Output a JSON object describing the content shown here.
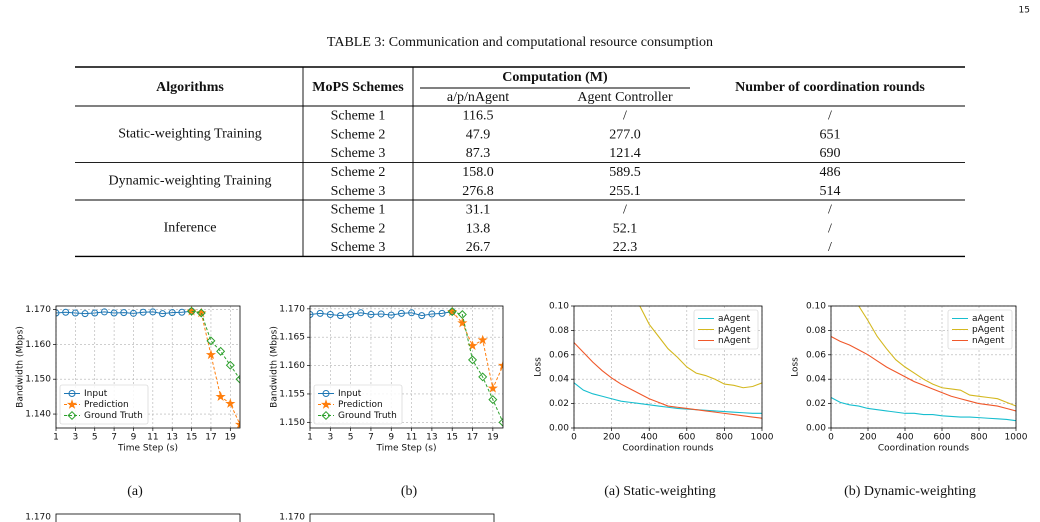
{
  "page_number": "15",
  "table": {
    "caption": "TABLE 3: Communication and computational resource consumption",
    "headers": {
      "algorithms": "Algorithms",
      "schemes": "MoPS Schemes",
      "computation": "Computation (M)",
      "agent": "a/p/nAgent",
      "controller": "Agent Controller",
      "rounds": "Number of coordination rounds"
    },
    "groups": [
      {
        "name": "Static-weighting Training",
        "rows": [
          [
            "Scheme 1",
            "116.5",
            "/",
            "/"
          ],
          [
            "Scheme 2",
            "47.9",
            "277.0",
            "651"
          ],
          [
            "Scheme 3",
            "87.3",
            "121.4",
            "690"
          ]
        ]
      },
      {
        "name": "Dynamic-weighting Training",
        "rows": [
          [
            "Scheme 2",
            "158.0",
            "589.5",
            "486"
          ],
          [
            "Scheme 3",
            "276.8",
            "255.1",
            "514"
          ]
        ]
      },
      {
        "name": "Inference",
        "rows": [
          [
            "Scheme 1",
            "31.1",
            "/",
            "/"
          ],
          [
            "Scheme 2",
            "13.8",
            "52.1",
            "/"
          ],
          [
            "Scheme 3",
            "26.7",
            "22.3",
            "/"
          ]
        ]
      }
    ]
  },
  "figures": [
    {
      "type": "line",
      "caption": "(a)",
      "xlabel": "Time Step (s)",
      "ylabel": "Bandwidth (Mbps)",
      "legend": "lower left",
      "grid": true,
      "x": [
        1,
        2,
        3,
        4,
        5,
        6,
        7,
        8,
        9,
        10,
        11,
        12,
        13,
        14,
        15,
        16,
        17,
        18,
        19,
        20
      ],
      "xlim": [
        1,
        20
      ],
      "xticks": [
        1,
        3,
        5,
        7,
        9,
        11,
        13,
        15,
        17,
        19
      ],
      "ylim": [
        1.136,
        1.171
      ],
      "yticks": [
        {
          "value": 1.14,
          "label": "1.140"
        },
        {
          "value": 1.15,
          "label": "1.150"
        },
        {
          "value": 1.16,
          "label": "1.160"
        },
        {
          "value": 1.17,
          "label": "1.170"
        }
      ],
      "series": [
        {
          "name": "Input",
          "color": "#1f77b4",
          "marker": "circle",
          "values": [
            1.169,
            1.1692,
            1.169,
            1.1688,
            1.169,
            1.1693,
            1.169,
            1.1691,
            1.1689,
            1.1692,
            1.1693,
            1.1688,
            1.1691,
            1.1692,
            1.1695,
            null,
            null,
            null,
            null,
            null
          ]
        },
        {
          "name": "Prediction",
          "color": "#ff7f0e",
          "marker": "star",
          "values": [
            null,
            null,
            null,
            null,
            null,
            null,
            null,
            null,
            null,
            null,
            null,
            null,
            null,
            null,
            1.1695,
            1.169,
            1.157,
            1.145,
            1.143,
            1.137
          ]
        },
        {
          "name": "Ground Truth",
          "color": "#2ca02c",
          "marker": "diamond",
          "values": [
            null,
            null,
            null,
            null,
            null,
            null,
            null,
            null,
            null,
            null,
            null,
            null,
            null,
            null,
            1.1695,
            1.169,
            1.161,
            1.158,
            1.154,
            1.15
          ]
        }
      ]
    },
    {
      "type": "line",
      "caption": "(b)",
      "xlabel": "Time Step (s)",
      "ylabel": "Bandwidth (Mbps)",
      "legend": "lower left",
      "grid": true,
      "x": [
        1,
        2,
        3,
        4,
        5,
        6,
        7,
        8,
        9,
        10,
        11,
        12,
        13,
        14,
        15,
        16,
        17,
        18,
        19,
        20
      ],
      "xlim": [
        1,
        20
      ],
      "xticks": [
        1,
        3,
        5,
        7,
        9,
        11,
        13,
        15,
        17,
        19
      ],
      "ylim": [
        1.149,
        1.1705
      ],
      "yticks": [
        {
          "value": 1.15,
          "label": "1.150"
        },
        1.155,
        {
          "value": 1.16,
          "label": "1.160"
        },
        1.165,
        {
          "value": 1.17,
          "label": "1.170"
        }
      ],
      "series": [
        {
          "name": "Input",
          "color": "#1f77b4",
          "marker": "circle",
          "values": [
            1.169,
            1.1692,
            1.169,
            1.1688,
            1.169,
            1.1693,
            1.169,
            1.1691,
            1.1689,
            1.1692,
            1.1693,
            1.1688,
            1.1691,
            1.1692,
            1.1695,
            null,
            null,
            null,
            null,
            null
          ]
        },
        {
          "name": "Prediction",
          "color": "#ff7f0e",
          "marker": "star",
          "values": [
            null,
            null,
            null,
            null,
            null,
            null,
            null,
            null,
            null,
            null,
            null,
            null,
            null,
            null,
            1.1695,
            1.1675,
            1.1635,
            1.1645,
            1.156,
            1.16
          ]
        },
        {
          "name": "Ground Truth",
          "color": "#2ca02c",
          "marker": "diamond",
          "values": [
            null,
            null,
            null,
            null,
            null,
            null,
            null,
            null,
            null,
            null,
            null,
            null,
            null,
            null,
            1.1695,
            1.169,
            1.161,
            1.158,
            1.154,
            1.15
          ]
        }
      ]
    },
    {
      "type": "line",
      "caption": "(a) Static-weighting",
      "xlabel": "Coordination rounds",
      "ylabel": "Loss",
      "legend": "upper right",
      "grid": true,
      "x": [
        0,
        50,
        100,
        150,
        200,
        250,
        300,
        350,
        400,
        450,
        500,
        550,
        600,
        650,
        700,
        750,
        800,
        850,
        900,
        950,
        1000
      ],
      "xlim": [
        0,
        1000
      ],
      "xticks": [
        0,
        200,
        400,
        600,
        800,
        1000
      ],
      "ylim": [
        0,
        0.1
      ],
      "yticks": [
        {
          "value": 0,
          "label": "0.00"
        },
        0.02,
        0.04,
        0.06,
        0.08,
        {
          "value": 0.1,
          "label": "0.10"
        }
      ],
      "series": [
        {
          "name": "aAgent",
          "color": "#17becf",
          "values": [
            0.037,
            0.031,
            0.028,
            0.026,
            0.024,
            0.022,
            0.021,
            0.02,
            0.019,
            0.018,
            0.017,
            0.016,
            0.0155,
            0.015,
            0.0145,
            0.014,
            0.0135,
            0.013,
            0.0125,
            0.012,
            0.012
          ]
        },
        {
          "name": "pAgent",
          "color": "#d4b820",
          "values": [
            null,
            null,
            null,
            null,
            null,
            null,
            null,
            0.1,
            0.085,
            0.075,
            0.065,
            0.058,
            0.05,
            0.045,
            0.043,
            0.04,
            0.036,
            0.035,
            0.033,
            0.034,
            0.037
          ]
        },
        {
          "name": "nAgent",
          "color": "#f0582a",
          "values": [
            0.07,
            0.062,
            0.054,
            0.047,
            0.041,
            0.036,
            0.032,
            0.028,
            0.024,
            0.021,
            0.018,
            0.017,
            0.016,
            0.015,
            0.014,
            0.013,
            0.012,
            0.011,
            0.01,
            0.009,
            0.008
          ]
        }
      ]
    },
    {
      "type": "line",
      "caption": "(b) Dynamic-weighting",
      "xlabel": "Coordination rounds",
      "ylabel": "Loss",
      "legend": "upper right",
      "grid": true,
      "x": [
        0,
        50,
        100,
        150,
        200,
        250,
        300,
        350,
        400,
        450,
        500,
        550,
        600,
        650,
        700,
        750,
        800,
        850,
        900,
        950,
        1000
      ],
      "xlim": [
        0,
        1000
      ],
      "xticks": [
        0,
        200,
        400,
        600,
        800,
        1000
      ],
      "ylim": [
        0,
        0.1
      ],
      "yticks": [
        {
          "value": 0,
          "label": "0.00"
        },
        0.02,
        0.04,
        0.06,
        0.08,
        {
          "value": 0.1,
          "label": "0.10"
        }
      ],
      "series": [
        {
          "name": "aAgent",
          "color": "#17becf",
          "values": [
            0.025,
            0.021,
            0.019,
            0.018,
            0.016,
            0.015,
            0.014,
            0.013,
            0.012,
            0.012,
            0.011,
            0.011,
            0.01,
            0.0095,
            0.009,
            0.009,
            0.0085,
            0.008,
            0.0075,
            0.007,
            0.006
          ]
        },
        {
          "name": "pAgent",
          "color": "#d4b820",
          "values": [
            null,
            null,
            null,
            0.1,
            0.088,
            0.075,
            0.065,
            0.056,
            0.05,
            0.045,
            0.04,
            0.036,
            0.033,
            0.032,
            0.031,
            0.027,
            0.026,
            0.025,
            0.024,
            0.021,
            0.018
          ]
        },
        {
          "name": "nAgent",
          "color": "#f0582a",
          "values": [
            0.075,
            0.071,
            0.068,
            0.064,
            0.06,
            0.055,
            0.05,
            0.046,
            0.042,
            0.038,
            0.035,
            0.032,
            0.029,
            0.026,
            0.024,
            0.022,
            0.02,
            0.019,
            0.018,
            0.016,
            0.014
          ]
        }
      ]
    }
  ],
  "fragments": [
    "1.170",
    "1.170"
  ]
}
